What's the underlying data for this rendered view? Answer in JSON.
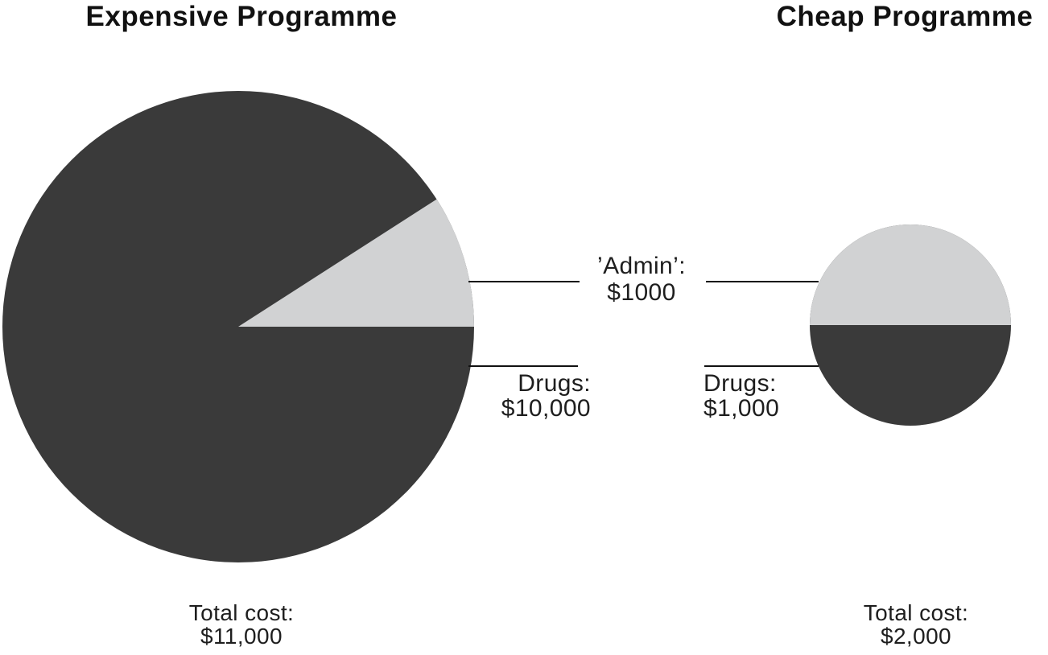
{
  "figure": {
    "background": "#ffffff"
  },
  "colors": {
    "drugs_dark": "#3a3a3a",
    "admin_light": "#d1d2d3",
    "leader_line": "#111111",
    "text": "#1e1e1e"
  },
  "charts": {
    "expensive": {
      "title": "Expensive Programme",
      "drugs_label": "Drugs:",
      "drugs_value": "$10,000",
      "total_label": "Total cost:",
      "total_value": "$11,000"
    },
    "cheap": {
      "title": "Cheap Programme",
      "drugs_label": "Drugs:",
      "drugs_value": "$1,000",
      "total_label": "Total cost:",
      "total_value": "$2,000"
    }
  },
  "shared_admin_label": {
    "line1": "’Admin’:",
    "line2": "$1000"
  },
  "chart_data": [
    {
      "id": "expensive",
      "type": "pie",
      "title": "Expensive Programme",
      "labels": [
        "Drugs",
        "’Admin’"
      ],
      "values": [
        10000,
        1000
      ],
      "colors": [
        "#3a3a3a",
        "#d1d2d3"
      ],
      "total": 11000,
      "annotations": [
        "Drugs: $10,000",
        "’Admin’: $1000",
        "Total cost: $11,000"
      ]
    },
    {
      "id": "cheap",
      "type": "pie",
      "title": "Cheap Programme",
      "labels": [
        "Drugs",
        "’Admin’"
      ],
      "values": [
        1000,
        1000
      ],
      "colors": [
        "#3a3a3a",
        "#d1d2d3"
      ],
      "total": 2000,
      "annotations": [
        "Drugs: $1,000",
        "’Admin’: $1000",
        "Total cost: $2,000"
      ]
    }
  ]
}
